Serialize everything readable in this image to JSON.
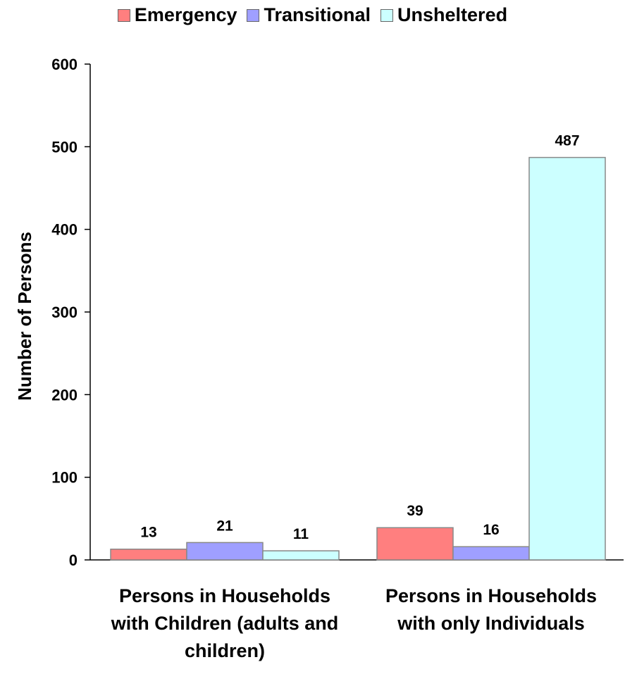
{
  "chart_data": {
    "type": "bar",
    "categories": [
      [
        "Persons in Households",
        "with Children (adults and",
        "children)"
      ],
      [
        "Persons in Households",
        "with only Individuals"
      ]
    ],
    "series": [
      {
        "name": "Emergency",
        "color": "#ff7f7f",
        "values": [
          13,
          39
        ]
      },
      {
        "name": "Transitional",
        "color": "#9f9fff",
        "values": [
          21,
          16
        ]
      },
      {
        "name": "Unsheltered",
        "color": "#ccffff",
        "values": [
          11,
          487
        ]
      }
    ],
    "title": "",
    "xlabel": "",
    "ylabel": "Number of Persons",
    "ylim": [
      0,
      600
    ],
    "yticks": [
      0,
      100,
      200,
      300,
      400,
      500,
      600
    ],
    "grid": false,
    "legend_position": "top"
  }
}
